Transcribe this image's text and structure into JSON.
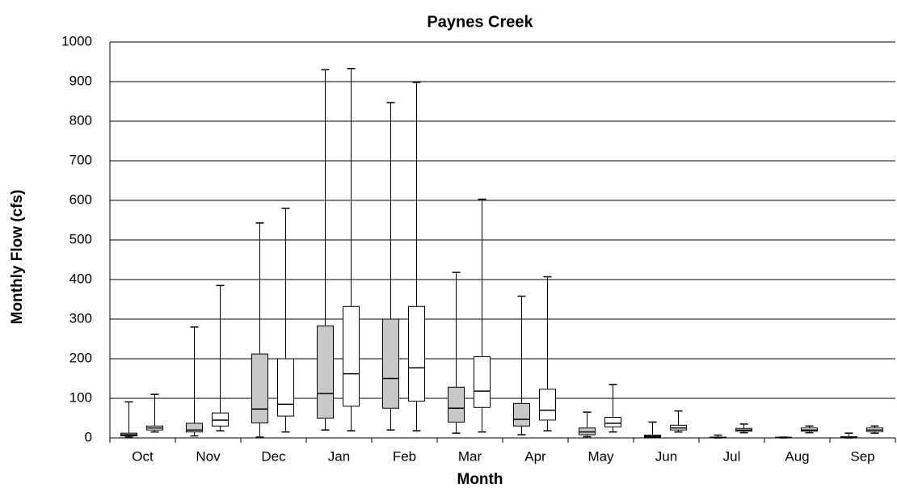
{
  "chart_data": {
    "type": "box",
    "title": "Paynes Creek",
    "x_label": "Month",
    "y_label": "Monthly Flow (cfs)",
    "categories": [
      "Oct",
      "Nov",
      "Dec",
      "Jan",
      "Feb",
      "Mar",
      "Apr",
      "May",
      "Jun",
      "Jul",
      "Aug",
      "Sep"
    ],
    "ylim": [
      0,
      1000
    ],
    "yticks": [
      0,
      100,
      200,
      300,
      400,
      500,
      600,
      700,
      800,
      900,
      1000
    ],
    "grid": true,
    "series": [
      {
        "color": "#c8c8c8",
        "min": [
          2,
          5,
          2,
          20,
          20,
          12,
          8,
          3,
          1,
          0,
          0,
          0
        ],
        "q1": [
          5,
          15,
          38,
          50,
          75,
          40,
          30,
          8,
          2,
          0.5,
          0.5,
          1
        ],
        "median": [
          8,
          20,
          73,
          112,
          150,
          75,
          47,
          15,
          4,
          1,
          1,
          2
        ],
        "q3": [
          12,
          37,
          212,
          283,
          300,
          128,
          87,
          25,
          7,
          2,
          1.5,
          3
        ],
        "max": [
          91,
          280,
          543,
          930,
          847,
          418,
          358,
          65,
          40,
          7,
          2,
          12
        ]
      },
      {
        "color": "#ffffff",
        "min": [
          15,
          18,
          15,
          18,
          18,
          15,
          18,
          15,
          15,
          13,
          13,
          12
        ],
        "q1": [
          20,
          30,
          55,
          80,
          93,
          77,
          45,
          28,
          20,
          17,
          17,
          16
        ],
        "median": [
          25,
          45,
          85,
          162,
          177,
          118,
          70,
          37,
          25,
          20,
          20,
          20
        ],
        "q3": [
          30,
          63,
          200,
          332,
          332,
          205,
          123,
          52,
          32,
          24,
          25,
          25
        ],
        "max": [
          110,
          385,
          580,
          933,
          898,
          603,
          407,
          135,
          68,
          35,
          30,
          30
        ]
      }
    ]
  }
}
